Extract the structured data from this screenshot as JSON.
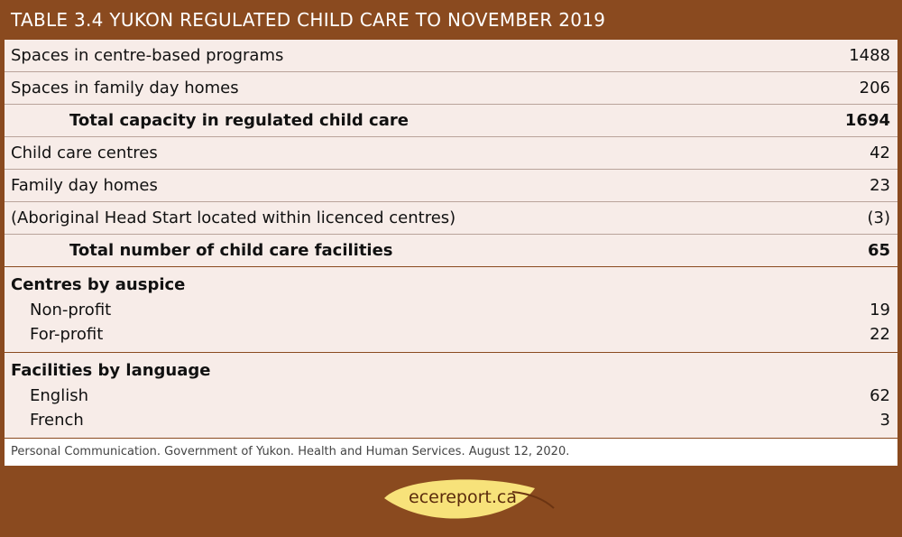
{
  "title": "TABLE 3.4 YUKON REGULATED CHILD CARE TO NOVEMBER 2019",
  "rows": [
    {
      "label": "Spaces in centre-based programs",
      "value": "1488"
    },
    {
      "label": "Spaces in family day homes",
      "value": "206"
    },
    {
      "label": "Total capacity in regulated child care",
      "value": "1694"
    },
    {
      "label": "Child care centres",
      "value": "42"
    },
    {
      "label": "Family day homes",
      "value": "23"
    },
    {
      "label": "(Aboriginal Head Start located within licenced centres)",
      "value": "(3)"
    },
    {
      "label": "Total number of child care facilities",
      "value": "65"
    }
  ],
  "groups": [
    {
      "heading": "Centres by auspice",
      "items": [
        {
          "label": "Non-profit",
          "value": "19"
        },
        {
          "label": "For-profit",
          "value": "22"
        }
      ]
    },
    {
      "heading": "Facilities by language",
      "items": [
        {
          "label": "English",
          "value": "62"
        },
        {
          "label": "French",
          "value": "3"
        }
      ]
    }
  ],
  "source": "Personal Communication. Government of Yukon. Health and Human Services. August 12, 2020.",
  "logo_text": "ecereport.ca",
  "colors": {
    "brand_brown": "#8a4a1f",
    "table_bg": "#f7ece8",
    "leaf_yellow": "#f7e27a"
  }
}
